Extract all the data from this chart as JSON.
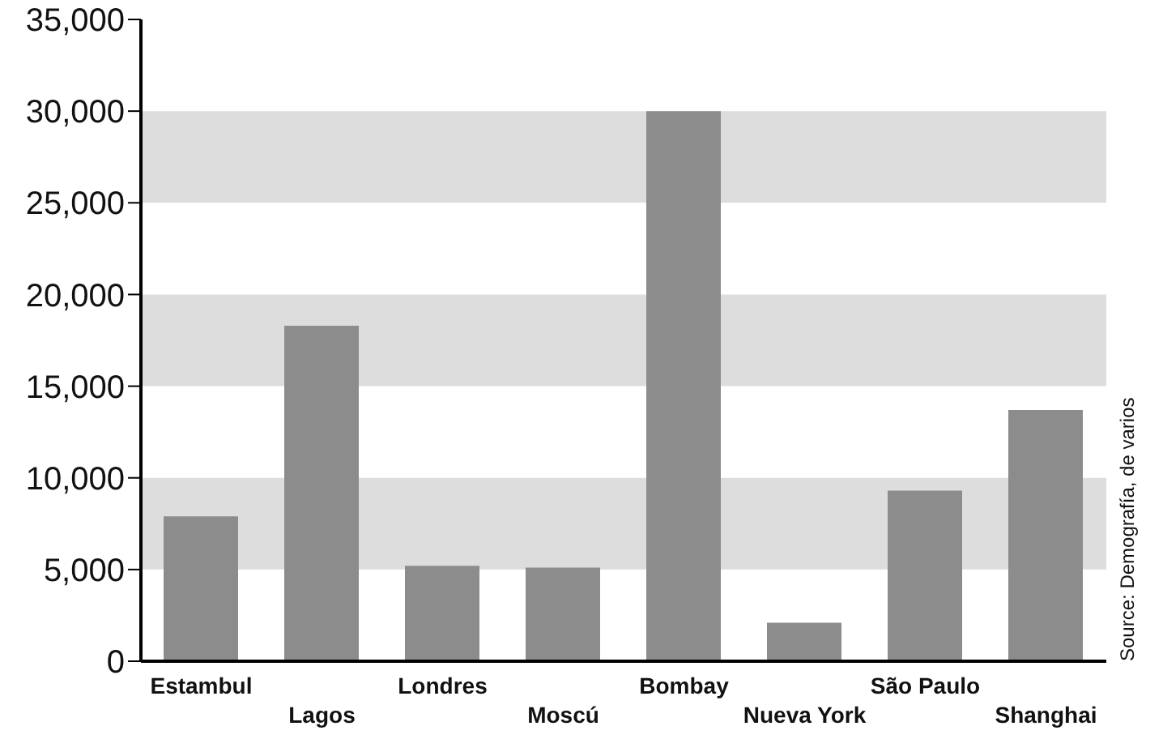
{
  "chart_data": {
    "type": "bar",
    "categories": [
      "Estambul",
      "Lagos",
      "Londres",
      "Moscú",
      "Bombay",
      "Nueva York",
      "São Paulo",
      "Shanghai"
    ],
    "values": [
      7900,
      18300,
      5200,
      5100,
      30000,
      2100,
      9300,
      13700
    ],
    "color": "#8c8c8c",
    "ylim": [
      0,
      35000
    ],
    "yticks": [
      {
        "value": 0,
        "label": "0"
      },
      {
        "value": 5000,
        "label": "5,000"
      },
      {
        "value": 10000,
        "label": "10,000"
      },
      {
        "value": 15000,
        "label": "15,000"
      },
      {
        "value": 20000,
        "label": "20,000"
      },
      {
        "value": 25000,
        "label": "25,000"
      },
      {
        "value": 30000,
        "label": "30,000"
      },
      {
        "value": 35000,
        "label": "35,000"
      }
    ],
    "bands": [
      {
        "axis": "y",
        "from": 5000,
        "to": 10000,
        "color": "#dddddd"
      },
      {
        "axis": "y",
        "from": 15000,
        "to": 20000,
        "color": "#dddddd"
      },
      {
        "axis": "y",
        "from": 25000,
        "to": 30000,
        "color": "#dddddd"
      }
    ],
    "annotations": [
      "Source: Demografía, de varios"
    ]
  }
}
